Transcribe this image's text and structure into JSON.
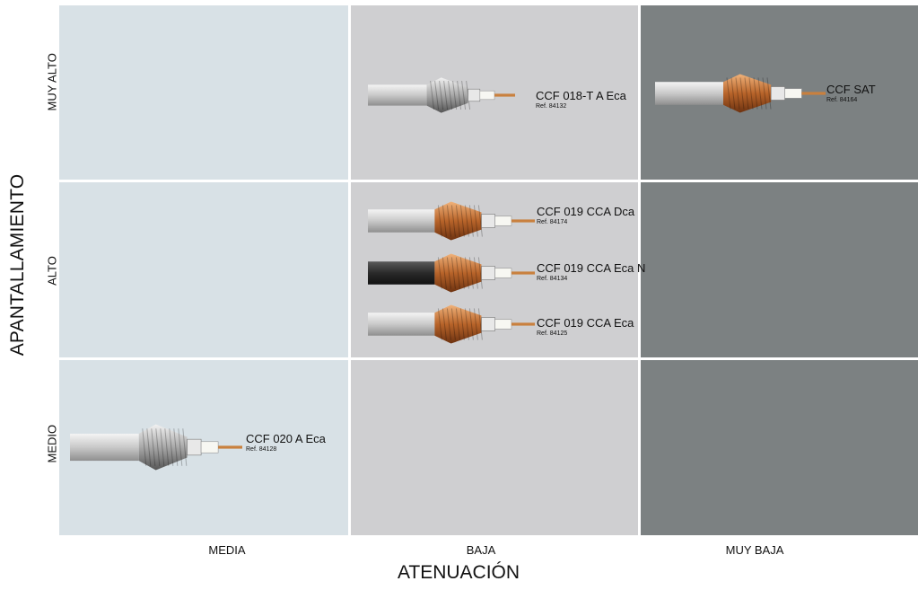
{
  "axes": {
    "y_title": "APANTALLAMIENTO",
    "x_title": "ATENUACIÓN",
    "rows": [
      "MUY ALTO",
      "ALTO",
      "MEDIO"
    ],
    "columns": [
      "MEDIA",
      "BAJA",
      "MUY BAJA"
    ]
  },
  "cables": [
    {
      "name": "CCF 018-T A Eca",
      "ref": "Ref. 84132",
      "shielding": "MUY ALTO",
      "attenuation": "BAJA",
      "jacket": "grey",
      "braid": "silver"
    },
    {
      "name": "CCF SAT",
      "ref": "Ref. 84164",
      "shielding": "MUY ALTO",
      "attenuation": "MUY BAJA",
      "jacket": "grey",
      "braid": "copper"
    },
    {
      "name": "CCF 019 CCA Dca",
      "ref": "Ref. 84174",
      "shielding": "ALTO",
      "attenuation": "BAJA",
      "jacket": "grey",
      "braid": "copper"
    },
    {
      "name": "CCF 019 CCA Eca N",
      "ref": "Ref. 84134",
      "shielding": "ALTO",
      "attenuation": "BAJA",
      "jacket": "black",
      "braid": "copper"
    },
    {
      "name": "CCF 019 CCA Eca",
      "ref": "Ref. 84125",
      "shielding": "ALTO",
      "attenuation": "BAJA",
      "jacket": "grey",
      "braid": "copper"
    },
    {
      "name": "CCF 020 A Eca",
      "ref": "Ref. 84128",
      "shielding": "MEDIO",
      "attenuation": "MEDIA",
      "jacket": "grey",
      "braid": "silver"
    }
  ],
  "colors": {
    "media": "#d8e1e6",
    "baja": "#cfcfd1",
    "muy_baja": "#7c8182"
  }
}
